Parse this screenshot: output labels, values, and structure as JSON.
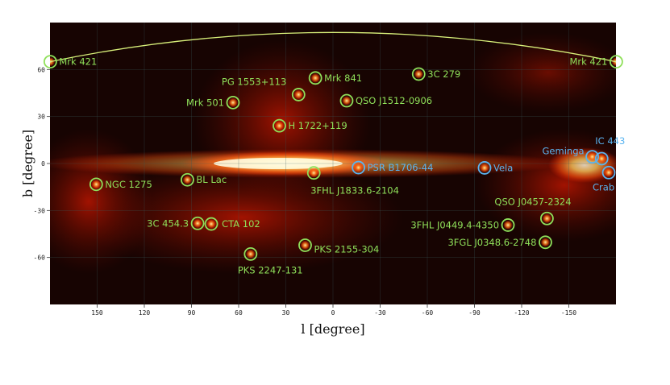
{
  "chart_data": {
    "type": "scatter",
    "projection": "cartesian galactic map, l decreasing to the right",
    "xlabel": "l [degree]",
    "ylabel": "b [degree]",
    "xlim": [
      180,
      -180
    ],
    "ylim": [
      -90,
      90
    ],
    "x_ticks": [
      150,
      120,
      90,
      60,
      30,
      0,
      -30,
      -60,
      -90,
      -120,
      -150
    ],
    "y_ticks": [
      60,
      30,
      0,
      -30,
      -60
    ],
    "grid": true,
    "background": "gamma-ray counts map, black-red-yellow colormap with bright galactic plane",
    "sources": [
      {
        "name": "Mrk 421",
        "l": 179.8,
        "b": 65.0,
        "class": "extragalactic"
      },
      {
        "name": "Mrk 421",
        "l": -180.2,
        "b": 65.0,
        "class": "extragalactic"
      },
      {
        "name": "3C 279",
        "l": -54.5,
        "b": 57.1,
        "class": "extragalactic"
      },
      {
        "name": "Mrk 841",
        "l": 11.2,
        "b": 54.6,
        "class": "extragalactic"
      },
      {
        "name": "PG 1553+113",
        "l": 21.9,
        "b": 44.0,
        "class": "extragalactic"
      },
      {
        "name": "QSO J1512-0906",
        "l": -8.7,
        "b": 40.1,
        "class": "extragalactic"
      },
      {
        "name": "Mrk 501",
        "l": 63.6,
        "b": 38.9,
        "class": "extragalactic"
      },
      {
        "name": "H 1722+119",
        "l": 34.1,
        "b": 24.1,
        "class": "extragalactic"
      },
      {
        "name": "NGC 1275",
        "l": 150.6,
        "b": -13.3,
        "class": "extragalactic"
      },
      {
        "name": "BL Lac",
        "l": 92.6,
        "b": -10.4,
        "class": "extragalactic"
      },
      {
        "name": "3FHL J1833.6-2104",
        "l": 12.2,
        "b": -6.0,
        "class": "extragalactic"
      },
      {
        "name": "PSR B1706-44",
        "l": -16.2,
        "b": -2.6,
        "class": "galactic"
      },
      {
        "name": "Vela",
        "l": -96.4,
        "b": -2.8,
        "class": "galactic"
      },
      {
        "name": "Geminga",
        "l": -164.9,
        "b": 4.3,
        "class": "galactic"
      },
      {
        "name": "IC 443",
        "l": -170.9,
        "b": 3.1,
        "class": "galactic"
      },
      {
        "name": "Crab",
        "l": -175.4,
        "b": -5.8,
        "class": "galactic"
      },
      {
        "name": "QSO J0457-2324",
        "l": -136.1,
        "b": -35.1,
        "class": "extragalactic"
      },
      {
        "name": "3FHL J0449.4-4350",
        "l": -111.3,
        "b": -39.3,
        "class": "extragalactic"
      },
      {
        "name": "3FGL J0348.6-2748",
        "l": -135.1,
        "b": -50.3,
        "class": "extragalactic"
      },
      {
        "name": "3C 454.3",
        "l": 86.1,
        "b": -38.2,
        "class": "extragalactic"
      },
      {
        "name": "CTA 102",
        "l": 77.4,
        "b": -38.6,
        "class": "extragalactic"
      },
      {
        "name": "PKS 2155-304",
        "l": 17.7,
        "b": -52.2,
        "class": "extragalactic"
      },
      {
        "name": "PKS 2247-131",
        "l": 52.4,
        "b": -57.8,
        "class": "extragalactic"
      }
    ]
  },
  "colors": {
    "extragalactic": "#8fe05a",
    "galactic": "#5ab4f0",
    "map_background": "#170402",
    "plane_core": "#fff6c8",
    "plane_glow": "#ff6a10",
    "horizon_arc": "#d8f07a"
  }
}
